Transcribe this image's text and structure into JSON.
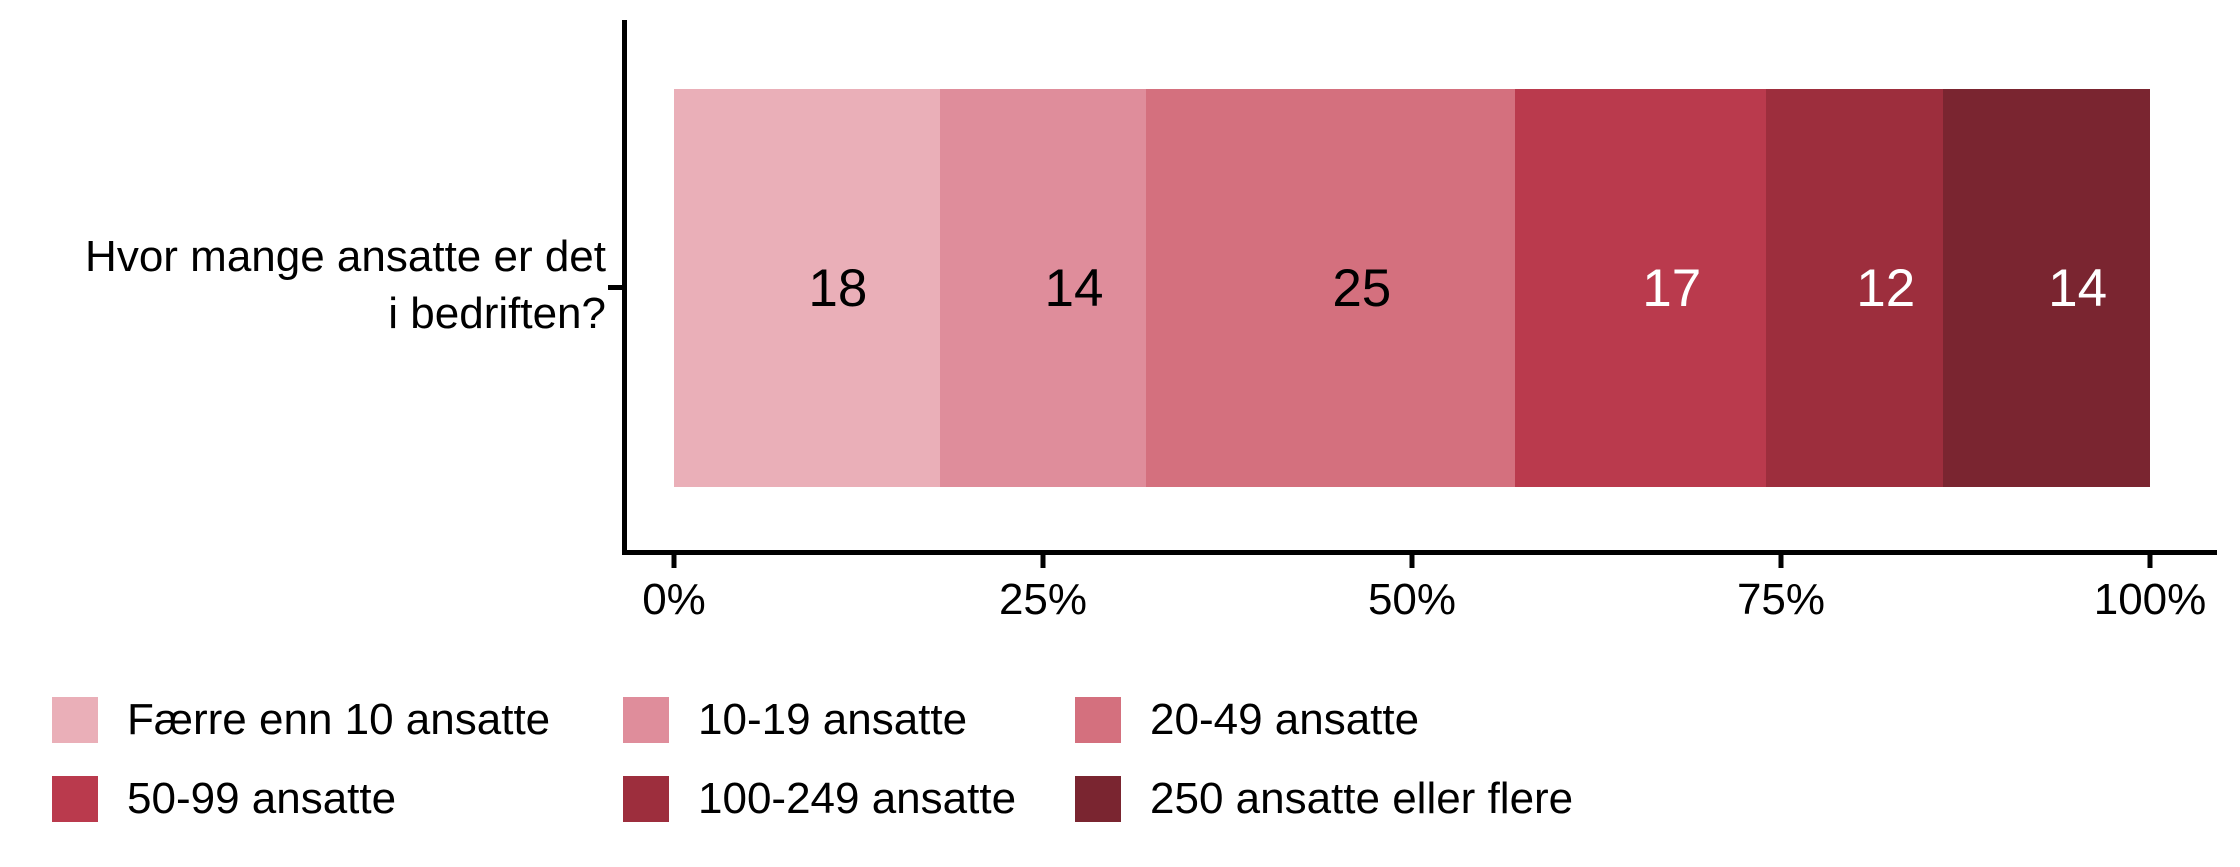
{
  "page": {
    "background": "#ffffff",
    "text_color": "#000000",
    "axis_color": "#000000"
  },
  "chart_data": {
    "type": "bar",
    "stacked": true,
    "orientation": "horizontal",
    "title": "",
    "ylabel_lines": [
      "Hvor mange ansatte er det",
      "i bedriften?"
    ],
    "categories": [
      "Færre enn 10 ansatte",
      "10-19 ansatte",
      "20-49 ansatte",
      "50-99 ansatte",
      "100-249 ansatte",
      "250 ansatte eller flere"
    ],
    "values": [
      18,
      14,
      25,
      17,
      12,
      14
    ],
    "value_labels": [
      "18",
      "14",
      "25",
      "17",
      "12",
      "14"
    ],
    "colors": [
      "#EAAFB8",
      "#DF8D9B",
      "#D4707E",
      "#BA3A4D",
      "#9D2E3D",
      "#7A2530"
    ],
    "value_label_colors": [
      "#000000",
      "#000000",
      "#000000",
      "#ffffff",
      "#ffffff",
      "#ffffff"
    ],
    "x_ticks": [
      "0%",
      "25%",
      "50%",
      "75%",
      "100%"
    ],
    "xlim": [
      0,
      100
    ],
    "grid": false,
    "legend_position": "bottom"
  }
}
